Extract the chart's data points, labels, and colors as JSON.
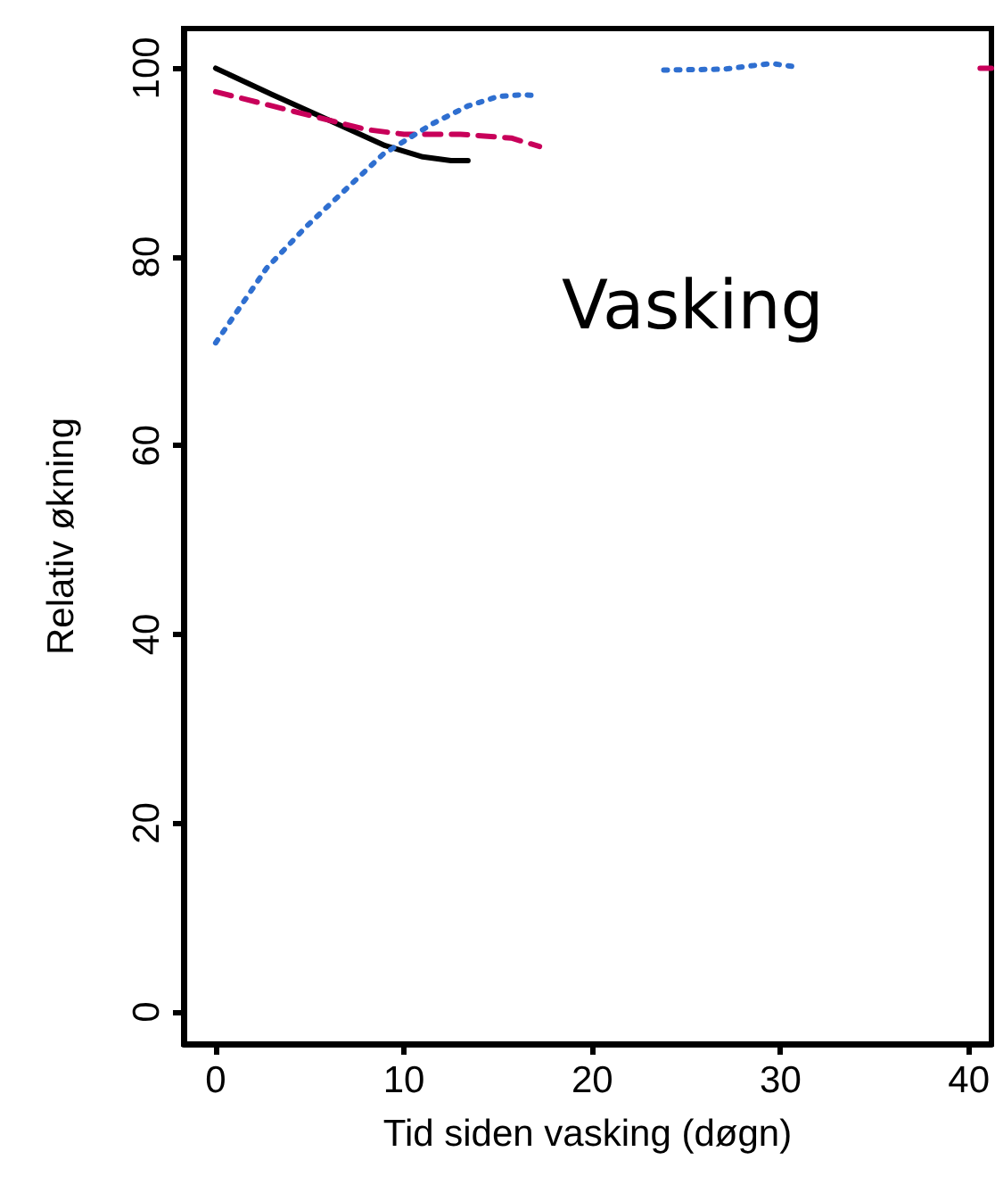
{
  "chart_data": {
    "type": "line",
    "xlabel": "Tid siden vasking (døgn)",
    "ylabel": "Relativ økning",
    "annotations": [
      "Vasking"
    ],
    "xlim": [
      -1.7,
      41.2
    ],
    "xticks": [
      0,
      10,
      20,
      30,
      40
    ],
    "ylim": [
      -3.4,
      104.2
    ],
    "yticks": [
      0,
      20,
      40,
      60,
      80,
      100
    ],
    "grid": false,
    "marker": "none",
    "series": [
      {
        "color": "#000000",
        "line_style": "solid",
        "x": [
          0,
          3,
          6,
          9,
          11,
          12.5,
          13.4
        ],
        "values": [
          100,
          97.2,
          94.5,
          91.8,
          90.6,
          90.2,
          90.2
        ]
      },
      {
        "color": "#c8005a",
        "line_style": "dashed",
        "x": [
          0,
          4,
          8,
          10,
          13,
          15.7,
          17.2,
          30,
          40.6,
          41.2
        ],
        "values": [
          97.5,
          95.5,
          93.5,
          93,
          93,
          92.6,
          91.7,
          null,
          100,
          100
        ]
      },
      {
        "color": "#2f6fd0",
        "line_style": "dotted",
        "x": [
          0,
          2.7,
          4.8,
          7.2,
          8.9,
          11.5,
          13.4,
          15,
          16.3,
          17,
          20,
          23.8,
          27,
          29.5,
          30.6
        ],
        "values": [
          70.9,
          78.8,
          83.2,
          87.7,
          90.9,
          94.1,
          96,
          97,
          97.2,
          97.1,
          null,
          99.8,
          99.9,
          100.5,
          100.2
        ]
      }
    ]
  }
}
